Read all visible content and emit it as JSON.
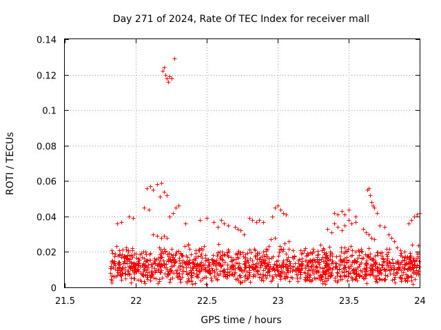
{
  "chart_data": {
    "type": "scatter",
    "title": "Day 271 of 2024, Rate Of TEC Index for receiver mall",
    "xlabel": "GPS time / hours",
    "ylabel": "ROTI / TECUs",
    "xlim": [
      21.5,
      24
    ],
    "ylim": [
      0,
      0.14
    ],
    "x_ticks": [
      21.5,
      22,
      22.5,
      23,
      23.5,
      24
    ],
    "x_tick_labels": [
      "21.5",
      "22",
      "22.5",
      "23",
      "23.5",
      "24"
    ],
    "y_ticks": [
      0,
      0.02,
      0.04,
      0.06,
      0.08,
      0.1,
      0.12,
      0.14
    ],
    "y_tick_labels": [
      "0",
      "0.02",
      "0.04",
      "0.06",
      "0.08",
      "0.1",
      "0.12",
      "0.14"
    ],
    "grid": true,
    "marker": "+",
    "marker_color": "#ff0000",
    "series": [
      {
        "name": "ROTI",
        "points": [
          [
            22.19,
            0.122
          ],
          [
            22.2,
            0.124
          ],
          [
            22.21,
            0.12
          ],
          [
            22.22,
            0.118
          ],
          [
            22.23,
            0.116
          ],
          [
            22.24,
            0.119
          ],
          [
            22.25,
            0.118
          ],
          [
            22.27,
            0.129
          ],
          [
            22.08,
            0.056
          ],
          [
            22.1,
            0.057
          ],
          [
            22.12,
            0.055
          ],
          [
            22.15,
            0.058
          ],
          [
            22.18,
            0.059
          ],
          [
            22.2,
            0.054
          ],
          [
            22.22,
            0.052
          ],
          [
            22.17,
            0.051
          ],
          [
            22.06,
            0.045
          ],
          [
            22.09,
            0.044
          ],
          [
            22.24,
            0.04
          ],
          [
            22.26,
            0.042
          ],
          [
            22.28,
            0.045
          ],
          [
            22.3,
            0.046
          ],
          [
            22.12,
            0.03
          ],
          [
            22.15,
            0.029
          ],
          [
            22.18,
            0.028
          ],
          [
            22.2,
            0.029
          ],
          [
            22.22,
            0.028
          ],
          [
            21.95,
            0.04
          ],
          [
            21.98,
            0.039
          ],
          [
            21.9,
            0.037
          ],
          [
            21.87,
            0.036
          ],
          [
            22.98,
            0.045
          ],
          [
            23.0,
            0.046
          ],
          [
            23.02,
            0.044
          ],
          [
            23.04,
            0.042
          ],
          [
            23.06,
            0.041
          ],
          [
            22.96,
            0.04
          ],
          [
            22.8,
            0.039
          ],
          [
            22.82,
            0.038
          ],
          [
            22.85,
            0.037
          ],
          [
            22.87,
            0.038
          ],
          [
            22.9,
            0.037
          ],
          [
            22.6,
            0.038
          ],
          [
            22.55,
            0.037
          ],
          [
            22.45,
            0.038
          ],
          [
            22.5,
            0.039
          ],
          [
            22.35,
            0.036
          ],
          [
            23.4,
            0.036
          ],
          [
            23.42,
            0.034
          ],
          [
            23.45,
            0.032
          ],
          [
            23.47,
            0.035
          ],
          [
            23.4,
            0.042
          ],
          [
            23.42,
            0.041
          ],
          [
            23.45,
            0.043
          ],
          [
            23.47,
            0.041
          ],
          [
            23.5,
            0.044
          ],
          [
            23.55,
            0.04
          ],
          [
            23.5,
            0.038
          ],
          [
            23.52,
            0.036
          ],
          [
            23.55,
            0.037
          ],
          [
            23.63,
            0.055
          ],
          [
            23.64,
            0.056
          ],
          [
            23.65,
            0.052
          ],
          [
            23.66,
            0.048
          ],
          [
            23.67,
            0.046
          ],
          [
            23.68,
            0.045
          ],
          [
            23.7,
            0.042
          ],
          [
            23.72,
            0.035
          ],
          [
            23.75,
            0.034
          ],
          [
            23.78,
            0.03
          ],
          [
            23.8,
            0.028
          ],
          [
            23.82,
            0.026
          ],
          [
            23.6,
            0.033
          ],
          [
            23.62,
            0.031
          ],
          [
            23.64,
            0.03
          ],
          [
            23.66,
            0.028
          ],
          [
            23.68,
            0.027
          ],
          [
            23.96,
            0.04
          ],
          [
            23.98,
            0.041
          ],
          [
            24.0,
            0.042
          ],
          [
            23.94,
            0.038
          ],
          [
            23.92,
            0.036
          ],
          [
            23.35,
            0.033
          ],
          [
            23.38,
            0.031
          ],
          [
            23.3,
            0.024
          ],
          [
            23.32,
            0.022
          ],
          [
            23.2,
            0.018
          ],
          [
            23.25,
            0.02
          ],
          [
            23.15,
            0.016
          ],
          [
            23.1,
            0.017
          ],
          [
            23.08,
            0.026
          ],
          [
            23.05,
            0.025
          ],
          [
            22.98,
            0.028
          ],
          [
            22.95,
            0.027
          ],
          [
            22.7,
            0.034
          ],
          [
            22.72,
            0.033
          ],
          [
            22.74,
            0.032
          ],
          [
            22.76,
            0.03
          ],
          [
            22.65,
            0.035
          ],
          [
            22.62,
            0.036
          ],
          [
            22.58,
            0.034
          ]
        ]
      }
    ],
    "dense_band": {
      "x_range": [
        21.82,
        24.0
      ],
      "y_range": [
        0.002,
        0.036
      ],
      "y_mode": 0.012
    }
  }
}
